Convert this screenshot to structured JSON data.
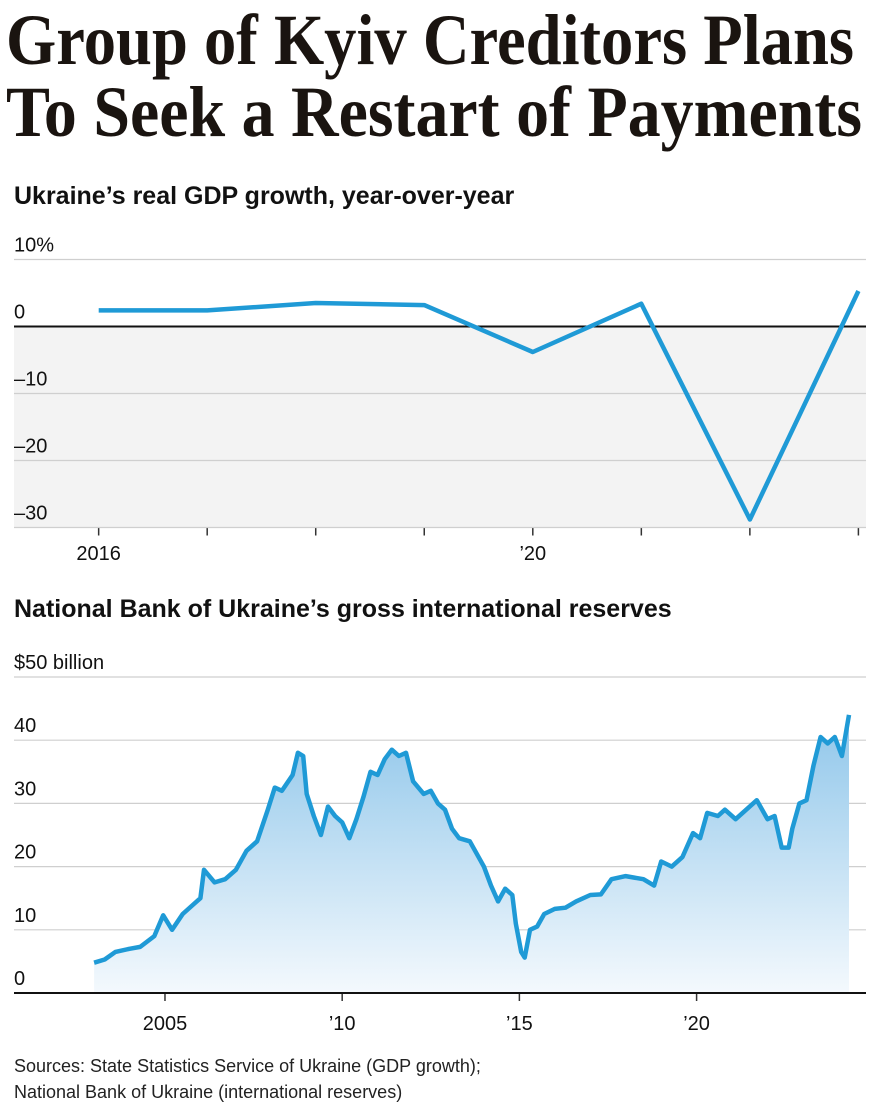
{
  "headline": [
    "Group of Kyiv Creditors Plans",
    "To Seek a Restart of Payments"
  ],
  "sources": [
    "Sources: State Statistics Service of Ukraine (GDP growth);",
    "National Bank of Ukraine (international reserves)"
  ],
  "chart_data": [
    {
      "type": "line",
      "title": "Ukraine’s real GDP growth, year-over-year",
      "x": [
        2016,
        2017,
        2018,
        2019,
        2020,
        2021,
        2022,
        2023
      ],
      "values": [
        2.4,
        2.4,
        3.5,
        3.2,
        -3.8,
        3.4,
        -28.8,
        5.3
      ],
      "color": "#1f9ad6",
      "xlim": [
        2015.22,
        2023.07
      ],
      "xticks": [
        2016,
        {
          "value": 2020,
          "label": "’20"
        }
      ],
      "xminorticks": [
        2017,
        2018,
        2019,
        2021,
        2022,
        2023
      ],
      "ylim": [
        -30,
        10
      ],
      "yticks": [
        {
          "value": 10,
          "label": "10%"
        },
        0,
        {
          "value": -10,
          "label": "–10"
        },
        {
          "value": -20,
          "label": "–20"
        },
        {
          "value": -30,
          "label": "–30"
        }
      ],
      "grid": true
    },
    {
      "type": "area",
      "title": "National Bank of Ukraine’s gross international reserves",
      "x": [
        2003.0,
        2003.3,
        2003.6,
        2004.0,
        2004.3,
        2004.7,
        2004.95,
        2005.2,
        2005.5,
        2005.8,
        2006.0,
        2006.1,
        2006.4,
        2006.7,
        2007.0,
        2007.3,
        2007.6,
        2007.9,
        2008.1,
        2008.3,
        2008.6,
        2008.75,
        2008.9,
        2009.0,
        2009.2,
        2009.4,
        2009.6,
        2009.8,
        2010.0,
        2010.2,
        2010.4,
        2010.6,
        2010.8,
        2011.0,
        2011.2,
        2011.4,
        2011.6,
        2011.8,
        2012.0,
        2012.3,
        2012.5,
        2012.7,
        2012.9,
        2013.1,
        2013.3,
        2013.6,
        2013.9,
        2014.0,
        2014.2,
        2014.4,
        2014.6,
        2014.8,
        2014.9,
        2015.05,
        2015.15,
        2015.3,
        2015.5,
        2015.7,
        2016.0,
        2016.3,
        2016.6,
        2017.0,
        2017.3,
        2017.6,
        2018.0,
        2018.5,
        2018.8,
        2019.0,
        2019.3,
        2019.6,
        2019.9,
        2020.1,
        2020.3,
        2020.6,
        2020.8,
        2021.1,
        2021.4,
        2021.7,
        2022.0,
        2022.2,
        2022.4,
        2022.6,
        2022.7,
        2022.9,
        2023.1,
        2023.3,
        2023.5,
        2023.7,
        2023.9,
        2024.1,
        2024.3
      ],
      "values": [
        4.8,
        5.3,
        6.5,
        7.0,
        7.3,
        9.0,
        12.3,
        10.0,
        12.5,
        14.0,
        15.0,
        19.5,
        17.5,
        18.0,
        19.5,
        22.5,
        24.0,
        29.0,
        32.5,
        32.0,
        34.5,
        38.0,
        37.5,
        31.5,
        28.0,
        25.0,
        29.5,
        28.0,
        27.0,
        24.5,
        27.5,
        31.0,
        35.0,
        34.5,
        37.0,
        38.5,
        37.5,
        38.0,
        33.5,
        31.5,
        32.0,
        30.0,
        29.0,
        26.0,
        24.5,
        24.0,
        21.0,
        20.0,
        17.0,
        14.5,
        16.5,
        15.5,
        11.0,
        6.5,
        5.6,
        10.0,
        10.5,
        12.5,
        13.3,
        13.5,
        14.5,
        15.5,
        15.6,
        18.0,
        18.5,
        18.0,
        17.0,
        20.8,
        20.0,
        21.5,
        25.3,
        24.5,
        28.5,
        28.0,
        29.0,
        27.5,
        29.0,
        30.5,
        27.5,
        28.0,
        23.0,
        23.0,
        26.0,
        30.0,
        30.5,
        36.0,
        40.5,
        39.5,
        40.5,
        37.5,
        44.0
      ],
      "color": "#1f9ad6",
      "xlim": [
        2000.74,
        2024.78
      ],
      "xticks": [
        2005,
        {
          "value": 2010,
          "label": "’10"
        },
        {
          "value": 2015,
          "label": "’15"
        },
        {
          "value": 2020,
          "label": "’20"
        }
      ],
      "ylim": [
        0,
        50
      ],
      "yticks": [
        {
          "value": 50,
          "label": "$50 billion"
        },
        40,
        30,
        20,
        10,
        0
      ],
      "grid": true
    }
  ]
}
